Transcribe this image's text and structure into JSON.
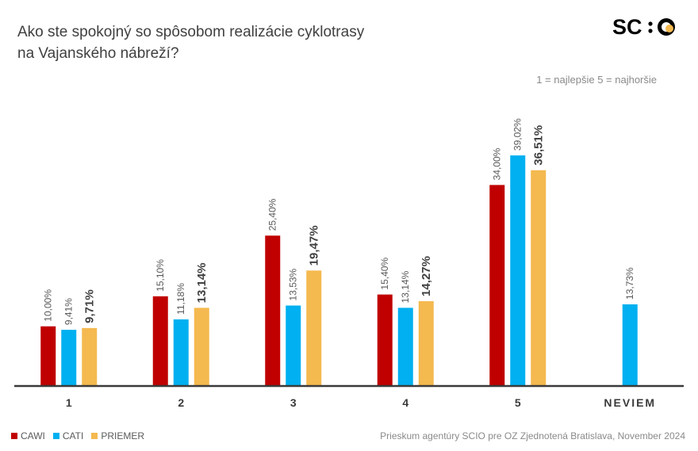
{
  "title_lines": [
    "Ako ste spokojný so spôsobom realizácie cyklotrasy",
    "na Vajanského nábreží?"
  ],
  "logo_text": "SC:O",
  "scale_note": "1 = najlepšie 5 = najhoršie",
  "source": "Prieskum agentúry SCIO pre OZ Zjednotená Bratislava, November 2024",
  "colors": {
    "CAWI": "#c00000",
    "CATI": "#00b0f0",
    "PRIEMER": "#f4b94f",
    "axis": "#3a3a3a",
    "label": "#595959"
  },
  "legend": [
    "CAWI",
    "CATI",
    "PRIEMER"
  ],
  "chart_data": {
    "type": "bar",
    "categories": [
      "1",
      "2",
      "3",
      "4",
      "5",
      "NEVIEM"
    ],
    "series": [
      {
        "name": "CAWI",
        "values": [
          10.0,
          15.1,
          25.4,
          15.4,
          34.0,
          null
        ],
        "labels": [
          "10,00%",
          "15,10%",
          "25,40%",
          "15,40%",
          "34,00%",
          null
        ]
      },
      {
        "name": "CATI",
        "values": [
          9.41,
          11.18,
          13.53,
          13.14,
          39.02,
          13.73
        ],
        "labels": [
          "9,41%",
          "11,18%",
          "13,53%",
          "13,14%",
          "39,02%",
          "13,73%"
        ]
      },
      {
        "name": "PRIEMER",
        "values": [
          9.71,
          13.14,
          19.47,
          14.27,
          36.51,
          null
        ],
        "labels": [
          "9,71%",
          "13,14%",
          "19,47%",
          "14,27%",
          "36,51%",
          null
        ]
      }
    ],
    "ylim": [
      0,
      40
    ],
    "grid": false
  }
}
